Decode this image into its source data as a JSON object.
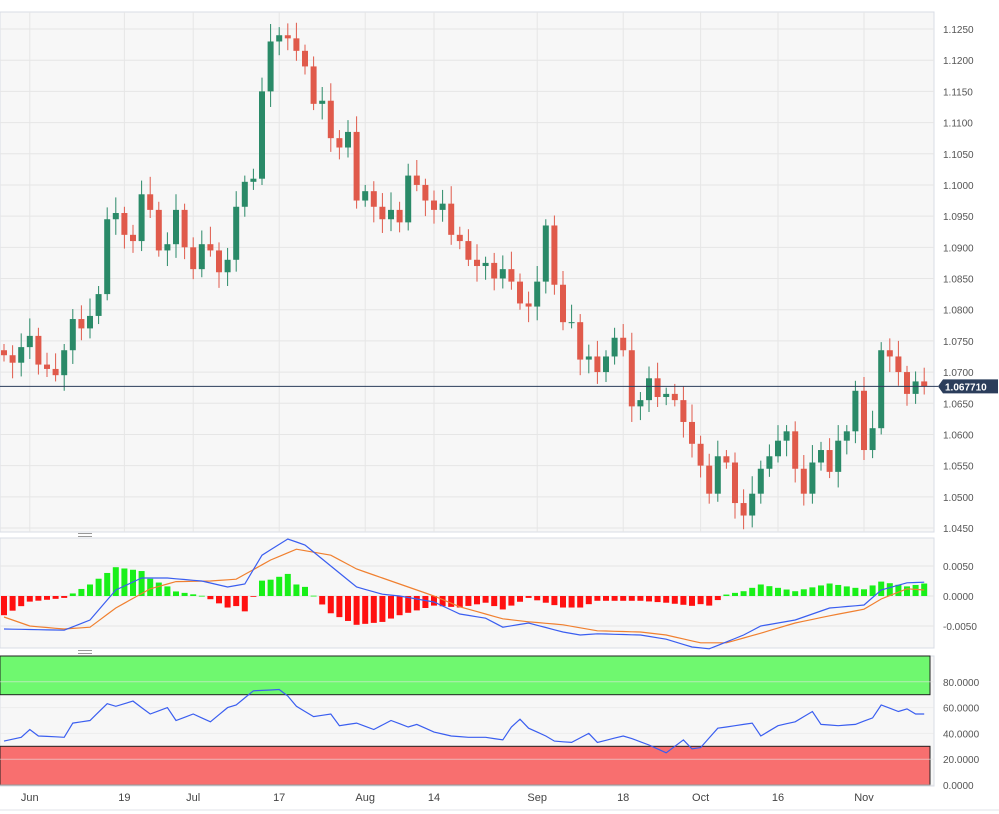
{
  "chart_data": [
    {
      "type": "candlestick",
      "title": "",
      "last_price_label": "1.067710",
      "y_ticks": [
        "1.1250",
        "1.1200",
        "1.1150",
        "1.1100",
        "1.1050",
        "1.1000",
        "1.0950",
        "1.0900",
        "1.0850",
        "1.0800",
        "1.0750",
        "1.0700",
        "1.0650",
        "1.0600",
        "1.0550",
        "1.0500",
        "1.0450"
      ],
      "ylim": [
        1.045,
        1.125
      ],
      "x_ticks": [
        {
          "label": "Jun",
          "index": 3
        },
        {
          "label": "19",
          "index": 14
        },
        {
          "label": "Jul",
          "index": 22
        },
        {
          "label": "17",
          "index": 32
        },
        {
          "label": "Aug",
          "index": 42
        },
        {
          "label": "14",
          "index": 50
        },
        {
          "label": "Sep",
          "index": 62
        },
        {
          "label": "18",
          "index": 72
        },
        {
          "label": "Oct",
          "index": 81
        },
        {
          "label": "16",
          "index": 90
        },
        {
          "label": "Nov",
          "index": 100
        }
      ],
      "close": [
        1.0727,
        1.0715,
        1.074,
        1.0758,
        1.0712,
        1.0705,
        1.0695,
        1.0735,
        1.0785,
        1.077,
        1.079,
        1.0825,
        1.0945,
        1.0955,
        1.092,
        1.091,
        1.0985,
        1.096,
        1.0895,
        1.0905,
        1.096,
        1.09,
        1.0865,
        1.0905,
        1.0895,
        1.086,
        1.088,
        1.0965,
        1.1005,
        1.101,
        1.115,
        1.123,
        1.124,
        1.1235,
        1.1215,
        1.119,
        1.113,
        1.1135,
        1.1075,
        1.106,
        1.1085,
        1.0975,
        1.099,
        1.0965,
        1.0945,
        1.096,
        1.094,
        1.1015,
        1.1,
        1.0975,
        1.096,
        1.097,
        1.092,
        1.091,
        1.088,
        1.087,
        1.0875,
        1.085,
        1.0865,
        1.0845,
        1.081,
        1.0805,
        1.0845,
        1.0935,
        1.084,
        1.078,
        1.078,
        1.072,
        1.0725,
        1.07,
        1.0725,
        1.0755,
        1.0735,
        1.0645,
        1.0655,
        1.069,
        1.066,
        1.0665,
        1.0655,
        1.062,
        1.0585,
        1.055,
        1.0505,
        1.0565,
        1.0555,
        1.049,
        1.047,
        1.0505,
        1.0545,
        1.0565,
        1.059,
        1.0605,
        1.0545,
        1.0505,
        1.0555,
        1.0575,
        1.054,
        1.059,
        1.0605,
        1.067,
        1.0575,
        1.061,
        1.0735,
        1.0725,
        1.07,
        1.0665,
        1.0685,
        1.0677
      ],
      "colors": {
        "up": "#2a8a68",
        "down": "#e05a4b",
        "last_price": "#2b3d5b"
      }
    },
    {
      "type": "line",
      "indicator": "MACD",
      "y_ticks": [
        "0.0050",
        "0.0000",
        "-0.0050"
      ],
      "ylim": [
        -0.009,
        0.01
      ],
      "macd": [
        [
          0,
          -0.0055
        ],
        [
          7,
          -0.0057
        ],
        [
          10,
          -0.004
        ],
        [
          13,
          0.001
        ],
        [
          16,
          0.003
        ],
        [
          19,
          0.003
        ],
        [
          23,
          0.0025
        ],
        [
          26,
          0.0015
        ],
        [
          28,
          0.002
        ],
        [
          30,
          0.0068
        ],
        [
          33,
          0.0095
        ],
        [
          35,
          0.0085
        ],
        [
          38,
          0.005
        ],
        [
          41,
          0.0015
        ],
        [
          44,
          0.0003
        ],
        [
          46,
          0.0
        ],
        [
          50,
          -0.001
        ],
        [
          53,
          -0.003
        ],
        [
          56,
          -0.0037
        ],
        [
          58,
          -0.0052
        ],
        [
          61,
          -0.0045
        ],
        [
          65,
          -0.006
        ],
        [
          67,
          -0.0065
        ],
        [
          69,
          -0.0063
        ],
        [
          74,
          -0.0065
        ],
        [
          77,
          -0.0072
        ],
        [
          80,
          -0.0085
        ],
        [
          82,
          -0.0088
        ],
        [
          86,
          -0.0065
        ],
        [
          88,
          -0.005
        ],
        [
          92,
          -0.004
        ],
        [
          96,
          -0.002
        ],
        [
          100,
          -0.0015
        ],
        [
          102,
          0.001
        ],
        [
          105,
          0.0022
        ],
        [
          107,
          0.0023
        ]
      ],
      "signal": [
        [
          0,
          -0.0035
        ],
        [
          3,
          -0.005
        ],
        [
          7,
          -0.0055
        ],
        [
          10,
          -0.0052
        ],
        [
          13,
          -0.002
        ],
        [
          17,
          0.0012
        ],
        [
          20,
          0.0024
        ],
        [
          24,
          0.0025
        ],
        [
          27,
          0.0028
        ],
        [
          31,
          0.006
        ],
        [
          34,
          0.0078
        ],
        [
          38,
          0.0068
        ],
        [
          41,
          0.0045
        ],
        [
          46,
          0.002
        ],
        [
          50,
          0.0
        ],
        [
          53,
          -0.0018
        ],
        [
          58,
          -0.0038
        ],
        [
          61,
          -0.0043
        ],
        [
          65,
          -0.0048
        ],
        [
          69,
          -0.0058
        ],
        [
          74,
          -0.006
        ],
        [
          77,
          -0.0065
        ],
        [
          81,
          -0.0078
        ],
        [
          84,
          -0.0078
        ],
        [
          88,
          -0.0062
        ],
        [
          92,
          -0.0045
        ],
        [
          96,
          -0.0033
        ],
        [
          100,
          -0.0022
        ],
        [
          102,
          -0.0005
        ],
        [
          105,
          0.0012
        ],
        [
          107,
          0.001
        ]
      ],
      "colors": {
        "macd": "#3a5ef0",
        "signal": "#f08030",
        "hist_pos": "#19f019",
        "hist_neg": "#ff1010"
      }
    },
    {
      "type": "line",
      "indicator": "RSI",
      "y_ticks": [
        "80.0000",
        "60.0000",
        "40.0000",
        "20.0000",
        "0.0000"
      ],
      "ylim": [
        0,
        100
      ],
      "overbought": 70,
      "oversold": 30,
      "rsi": [
        [
          0,
          34
        ],
        [
          2,
          37
        ],
        [
          3,
          43
        ],
        [
          4,
          38
        ],
        [
          7,
          37
        ],
        [
          8,
          48
        ],
        [
          10,
          50
        ],
        [
          12,
          63
        ],
        [
          13,
          61
        ],
        [
          15,
          65
        ],
        [
          17,
          55
        ],
        [
          19,
          60
        ],
        [
          20,
          50
        ],
        [
          22,
          55
        ],
        [
          24,
          49
        ],
        [
          26,
          60
        ],
        [
          27,
          62
        ],
        [
          29,
          73
        ],
        [
          32,
          74
        ],
        [
          33,
          69
        ],
        [
          34,
          61
        ],
        [
          36,
          53
        ],
        [
          38,
          55
        ],
        [
          39,
          46
        ],
        [
          41,
          48
        ],
        [
          43,
          43
        ],
        [
          45,
          50
        ],
        [
          47,
          45
        ],
        [
          48,
          47
        ],
        [
          50,
          41
        ],
        [
          52,
          38
        ],
        [
          54,
          37
        ],
        [
          56,
          37
        ],
        [
          58,
          35
        ],
        [
          59,
          45
        ],
        [
          60,
          51
        ],
        [
          61,
          44
        ],
        [
          63,
          38
        ],
        [
          64,
          34
        ],
        [
          66,
          33
        ],
        [
          68,
          40
        ],
        [
          69,
          33
        ],
        [
          72,
          38
        ],
        [
          73,
          36
        ],
        [
          75,
          31
        ],
        [
          77,
          25
        ],
        [
          79,
          35
        ],
        [
          80,
          28
        ],
        [
          81,
          29
        ],
        [
          83,
          44
        ],
        [
          85,
          46
        ],
        [
          87,
          48
        ],
        [
          88,
          38
        ],
        [
          90,
          46
        ],
        [
          92,
          49
        ],
        [
          94,
          57
        ],
        [
          95,
          47
        ],
        [
          97,
          46
        ],
        [
          99,
          47
        ],
        [
          101,
          52
        ],
        [
          102,
          62
        ],
        [
          104,
          57
        ],
        [
          105,
          59
        ],
        [
          106,
          55
        ],
        [
          107,
          55
        ]
      ],
      "colors": {
        "rsi": "#3a5ef0",
        "overbought_zone": "#6ff86f",
        "oversold_zone": "#f86f6f"
      }
    }
  ]
}
